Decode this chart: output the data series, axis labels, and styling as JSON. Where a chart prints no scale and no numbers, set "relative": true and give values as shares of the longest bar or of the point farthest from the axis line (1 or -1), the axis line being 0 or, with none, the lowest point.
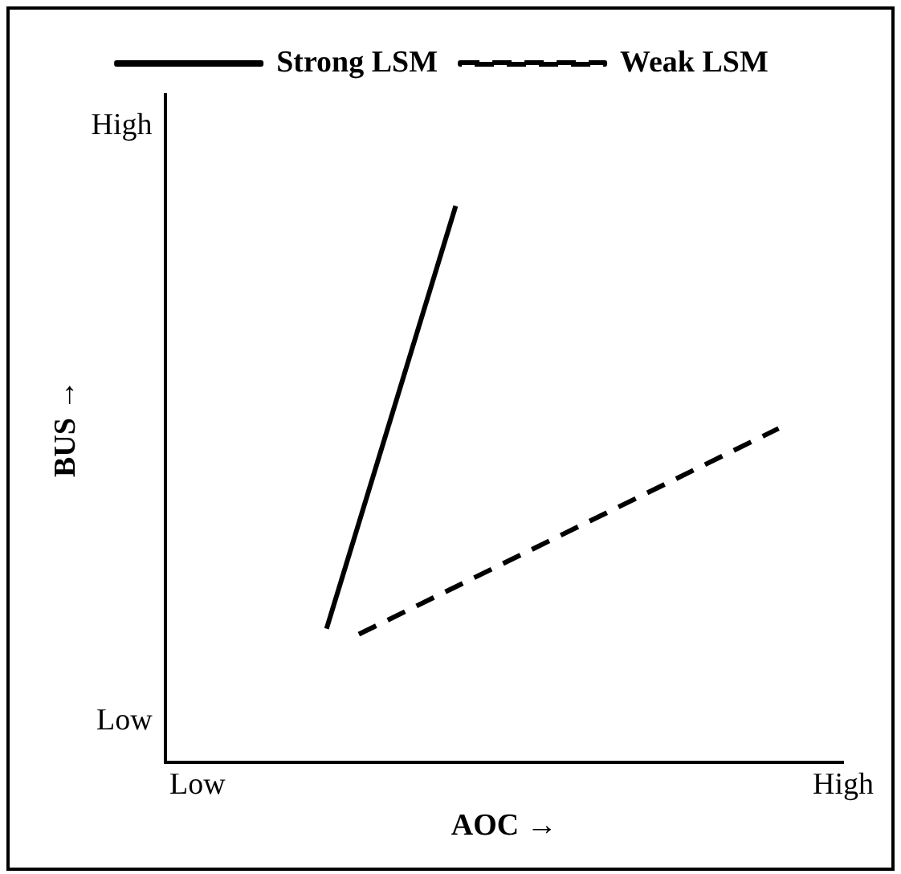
{
  "chart_data": {
    "type": "line",
    "xlabel": "AOC →",
    "ylabel": "BUS →",
    "relative": true,
    "annotations": [
      "Low",
      "High"
    ],
    "categories": [
      null,
      "Low",
      null,
      null,
      null,
      null,
      null,
      null,
      null,
      null,
      null,
      null,
      null,
      null,
      null,
      null,
      null,
      null,
      null,
      null,
      null,
      "High"
    ],
    "series": [
      {
        "name": "Strong LSM",
        "color": "#000000",
        "line_style": "solid",
        "values": [
          null,
          null,
          null,
          null,
          null,
          0.24,
          null,
          null,
          null,
          1,
          null,
          null,
          null,
          null,
          null,
          null,
          null,
          null,
          null,
          null,
          null,
          null
        ]
      },
      {
        "name": "Weak LSM",
        "color": "#000000",
        "line_style": "dashed",
        "values": [
          null,
          null,
          null,
          null,
          null,
          null,
          0.23,
          null,
          null,
          null,
          null,
          null,
          null,
          null,
          null,
          null,
          null,
          null,
          null,
          0.6,
          null,
          null
        ]
      }
    ],
    "grid": false,
    "legend": "top",
    "marker": "none"
  }
}
